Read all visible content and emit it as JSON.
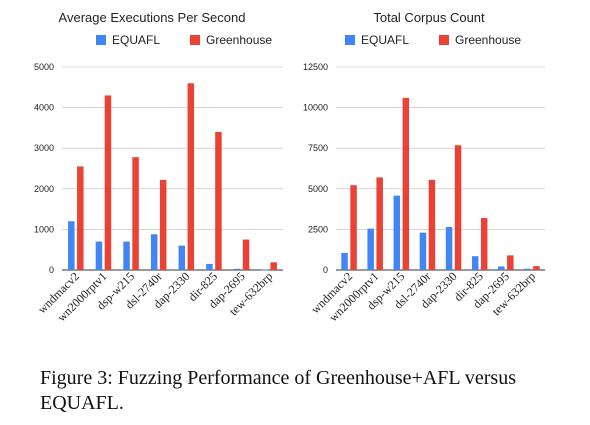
{
  "caption": "Figure 3: Fuzzing Performance of Greenhouse+AFL versus EQUAFL.",
  "colors": {
    "EQUAFL": "#4285f4",
    "Greenhouse": "#ea4335",
    "grid": "#bdbdbd"
  },
  "chart_data": [
    {
      "type": "bar",
      "title": "Average Executions Per Second",
      "legend_position": "top",
      "categories": [
        "wndmacv2",
        "wn2000rptv1",
        "dsp-w215",
        "dsl-2740r",
        "dap-2330",
        "dir-825",
        "dap-2695",
        "tew-632brp"
      ],
      "series": [
        {
          "name": "EQUAFL",
          "values": [
            1200,
            700,
            700,
            880,
            600,
            150,
            30,
            10
          ]
        },
        {
          "name": "Greenhouse",
          "values": [
            2550,
            4300,
            2780,
            2220,
            4600,
            3400,
            750,
            190
          ]
        }
      ],
      "yticks": [
        "0",
        "1000",
        "2000",
        "3000",
        "4000",
        "5000"
      ],
      "ylim": [
        0,
        5000
      ],
      "grid": true
    },
    {
      "type": "bar",
      "title": "Total Corpus Count",
      "legend_position": "top",
      "categories": [
        "wndmacv2",
        "wn2000rptv1",
        "dsp-w215",
        "dsl-2740r",
        "dap-2330",
        "dir-825",
        "dap-2695",
        "tew-632brp"
      ],
      "series": [
        {
          "name": "EQUAFL",
          "values": [
            1050,
            2550,
            4580,
            2300,
            2650,
            850,
            220,
            80
          ]
        },
        {
          "name": "Greenhouse",
          "values": [
            5220,
            5700,
            10600,
            5550,
            7680,
            3200,
            900,
            240
          ]
        }
      ],
      "yticks": [
        "0",
        "2500",
        "5000",
        "7500",
        "10000",
        "12500"
      ],
      "ylim": [
        0,
        12500
      ],
      "grid": true
    }
  ]
}
